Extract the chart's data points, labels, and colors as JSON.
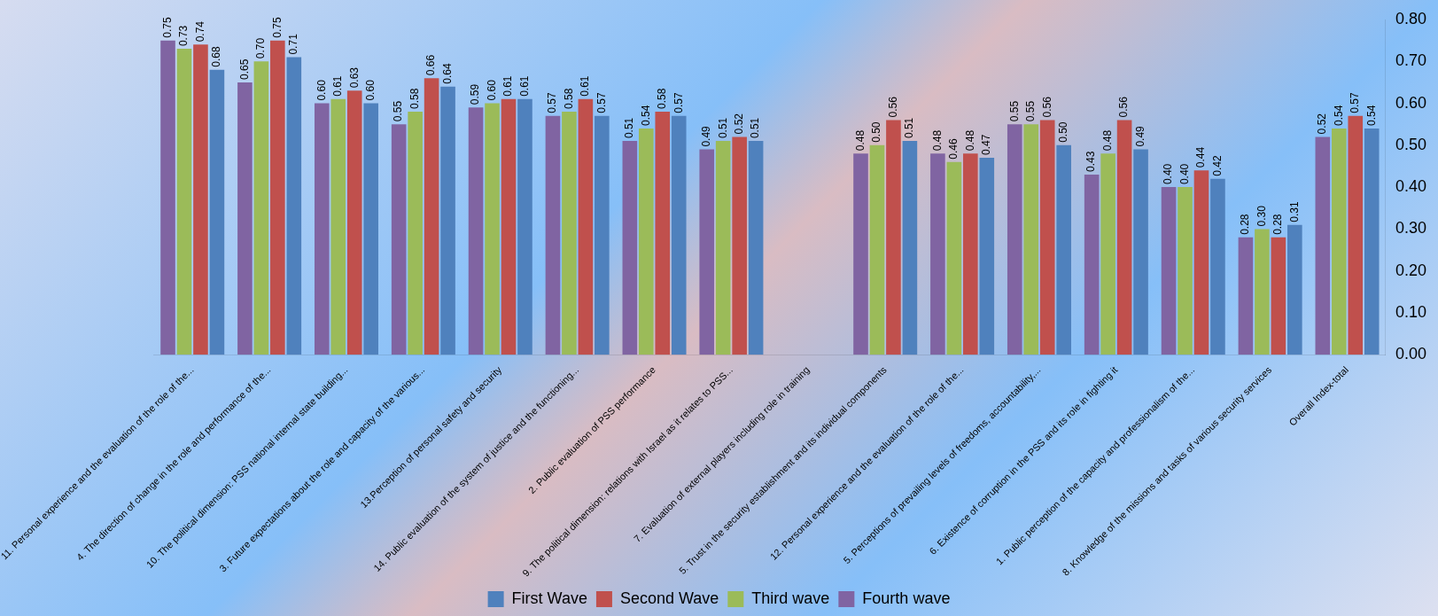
{
  "chart_data": {
    "type": "bar",
    "categories": [
      "11. Personal experience and the evaluation of the role of the...",
      "4. The direction of change in the role and performance of the...",
      "10. The political dimension: PSS national internal state building...",
      "3. Future expectations about the role and capacity of the various...",
      "13.Perception of personal safety and security",
      "14. Public evaluation of the system of justice and the functioning...",
      "2. Public evaluation of PSS performance",
      "9. The political dimension: relations with Israel as it relates to PSS...",
      "7. Evaluation of external players including role in training",
      "5. Trust in the security establishment and its individual components",
      "12. Personal experience and the evaluation of the role of the...",
      "5. Perceptions of prevailing levels of freedoms, accountability,...",
      "6. Existence of corruption in the PSS and its role in fighting it",
      "1. Public perception of the capacity and professionalism of the...",
      "8. Knowledge of the missions and tasks of various security services",
      "Overall Index-total"
    ],
    "series": [
      {
        "name": "First Wave",
        "color": "#4f81bd",
        "values": [
          0.68,
          0.71,
          0.6,
          0.64,
          0.61,
          0.57,
          0.57,
          0.51,
          null,
          0.51,
          0.47,
          0.5,
          0.49,
          0.42,
          0.31,
          0.54
        ],
        "value_labels": [
          "0.68",
          "0.71",
          "0.60",
          "0.64",
          "0.61",
          "0.57",
          "0.57",
          "0.51",
          null,
          "0.51",
          "0.47",
          "0.50",
          "0.49",
          "0.42",
          "0.31",
          "0.54"
        ]
      },
      {
        "name": "Second Wave",
        "color": "#c0504d",
        "values": [
          0.74,
          0.75,
          0.63,
          0.66,
          0.61,
          0.61,
          0.58,
          0.52,
          null,
          0.56,
          0.48,
          0.56,
          0.56,
          0.44,
          0.28,
          0.57
        ],
        "value_labels": [
          "0.74",
          "0.75",
          "0.63",
          "0.66",
          "0.61",
          "0.61",
          "0.58",
          "0.52",
          null,
          "0.56",
          "0.48",
          "0.56",
          "0.56",
          "0.44",
          "0.28",
          "0.57"
        ]
      },
      {
        "name": "Third wave",
        "color": "#9bbb59",
        "values": [
          0.73,
          0.7,
          0.61,
          0.58,
          0.6,
          0.58,
          0.54,
          0.51,
          null,
          0.5,
          0.46,
          0.55,
          0.48,
          0.4,
          0.3,
          0.54
        ],
        "value_labels": [
          "0.73",
          "0.70",
          "0.61",
          "0.58",
          "0.60",
          "0.58",
          "0.54",
          "0.51",
          null,
          "0.50",
          "0.46",
          "0.55",
          "0.48",
          "0.40",
          "0.30",
          "0.54"
        ]
      },
      {
        "name": "Fourth wave",
        "color": "#8064a2",
        "values": [
          0.75,
          0.65,
          0.6,
          0.55,
          0.59,
          0.57,
          0.51,
          0.49,
          null,
          0.48,
          0.48,
          0.55,
          0.43,
          0.4,
          0.28,
          0.52
        ],
        "value_labels": [
          "0.75",
          "0.65",
          "0.60",
          "0.55",
          "0.59",
          "0.57",
          "0.51",
          "0.49",
          null,
          "0.48",
          "0.48",
          "0.55",
          "0.43",
          "0.40",
          "0.28",
          "0.52"
        ]
      }
    ],
    "ylim": [
      0,
      0.8
    ],
    "yticks": [
      {
        "value": 0,
        "label": "0.00"
      },
      {
        "value": 0.1,
        "label": "0.10"
      },
      {
        "value": 0.2,
        "label": "0.20"
      },
      {
        "value": 0.3,
        "label": "0.30"
      },
      {
        "value": 0.4,
        "label": "0.40"
      },
      {
        "value": 0.5,
        "label": "0.50"
      },
      {
        "value": 0.6,
        "label": "0.60"
      },
      {
        "value": 0.7,
        "label": "0.70"
      },
      {
        "value": 0.8,
        "label": "0.80"
      }
    ],
    "legend": "bottom"
  }
}
